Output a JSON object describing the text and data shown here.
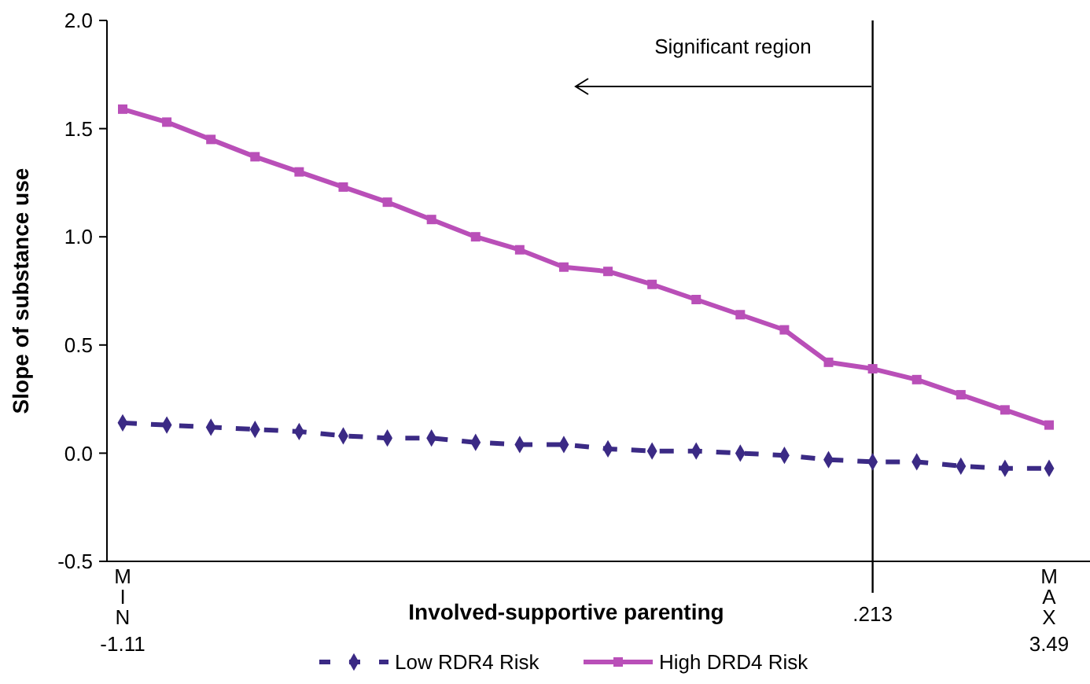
{
  "chart_data": {
    "type": "line",
    "xlabel": "Involved-supportive parenting",
    "ylabel": "Slope of substance use",
    "annotations": [
      "Significant region"
    ],
    "categories": [
      "MIN\n-1.11",
      null,
      null,
      null,
      null,
      null,
      null,
      null,
      null,
      null,
      null,
      null,
      null,
      null,
      null,
      null,
      null,
      ".213",
      null,
      null,
      null,
      "MAX\n3.49"
    ],
    "ylim": [
      -0.5,
      2.0
    ],
    "yticks": [
      {
        "value": -0.5,
        "label": "-0.5"
      },
      {
        "value": 0,
        "label": "0.0"
      },
      {
        "value": 0.5,
        "label": "0.5"
      },
      {
        "value": 1,
        "label": "1.0"
      },
      {
        "value": 1.5,
        "label": "1.5"
      },
      {
        "value": 2,
        "label": "2.0"
      }
    ],
    "ref_lines": [
      {
        "axis": "x",
        "value": ".213",
        "color": "#000000"
      }
    ],
    "grid": false,
    "legend": "bottom",
    "series": [
      {
        "name": "Low RDR4 Risk",
        "color": "#3b2a85",
        "marker": "diamond",
        "line_style": "dashed",
        "values": [
          0.14,
          0.13,
          0.12,
          0.11,
          0.1,
          0.08,
          0.07,
          0.07,
          0.05,
          0.04,
          0.04,
          0.02,
          0.01,
          0.01,
          0.0,
          -0.01,
          -0.03,
          -0.04,
          -0.04,
          -0.06,
          -0.07,
          -0.07
        ]
      },
      {
        "name": "High DRD4 Risk",
        "color": "#b94fb8",
        "marker": "square",
        "line_style": "solid",
        "values": [
          1.59,
          1.53,
          1.45,
          1.37,
          1.3,
          1.23,
          1.16,
          1.08,
          1.0,
          0.94,
          0.86,
          0.84,
          0.78,
          0.71,
          0.64,
          0.57,
          0.42,
          0.39,
          0.34,
          0.27,
          0.2,
          0.13
        ]
      }
    ]
  }
}
